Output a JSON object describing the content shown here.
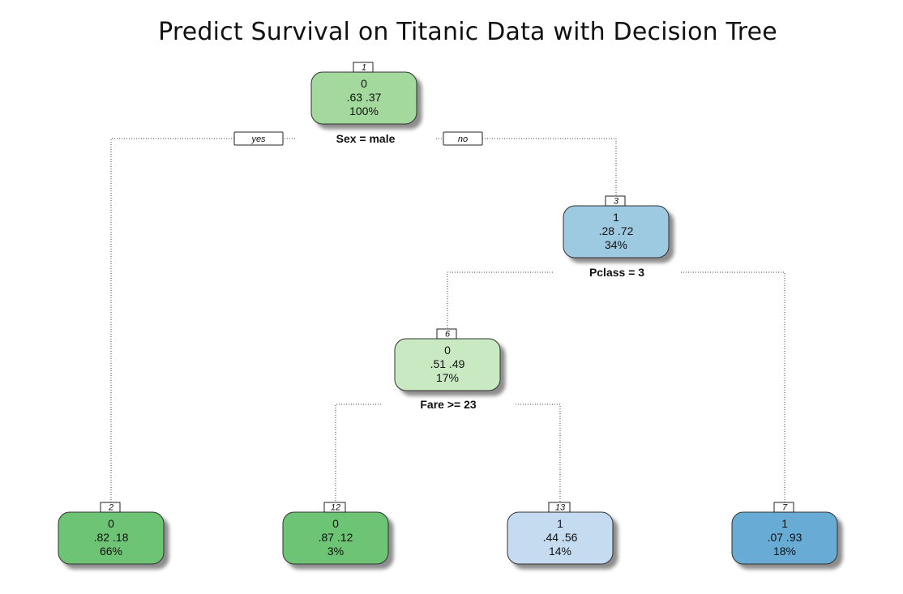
{
  "title": "Predict Survival on Titanic Data with Decision Tree",
  "colors": {
    "green_dark": "#6ec474",
    "green_mid": "#a3d99c",
    "green_light": "#c9e9c3",
    "blue_light": "#c5dbef",
    "blue_mid": "#9ecae1",
    "blue_dark": "#67acd6"
  },
  "nodes": [
    {
      "id": "1",
      "class": "0",
      "probs": ".63  .37",
      "pct": "100%",
      "color": "green_mid"
    },
    {
      "id": "3",
      "class": "1",
      "probs": ".28  .72",
      "pct": "34%",
      "color": "blue_mid"
    },
    {
      "id": "6",
      "class": "0",
      "probs": ".51  .49",
      "pct": "17%",
      "color": "green_light"
    },
    {
      "id": "2",
      "class": "0",
      "probs": ".82  .18",
      "pct": "66%",
      "color": "green_dark"
    },
    {
      "id": "12",
      "class": "0",
      "probs": ".87  .12",
      "pct": "3%",
      "color": "green_dark"
    },
    {
      "id": "13",
      "class": "1",
      "probs": ".44  .56",
      "pct": "14%",
      "color": "blue_light"
    },
    {
      "id": "7",
      "class": "1",
      "probs": ".07  .93",
      "pct": "18%",
      "color": "blue_dark"
    }
  ],
  "splits": [
    {
      "node": "1",
      "label": "Sex = male"
    },
    {
      "node": "3",
      "label": "Pclass = 3"
    },
    {
      "node": "6",
      "label": "Fare >= 23"
    }
  ],
  "branch_labels": {
    "yes": "yes",
    "no": "no"
  }
}
